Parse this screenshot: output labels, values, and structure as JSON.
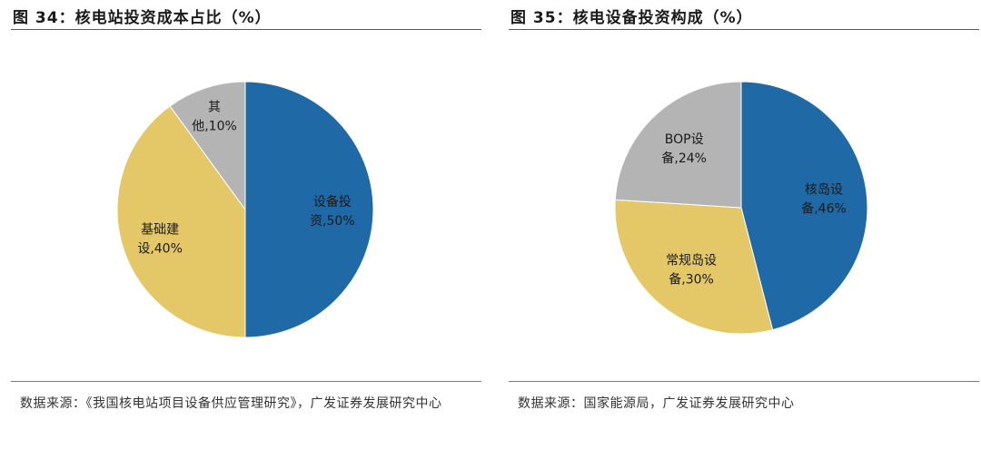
{
  "chart_data": [
    {
      "type": "pie",
      "title": "图 34：核电站投资成本占比（%）",
      "categories": [
        "设备投资",
        "基础建设",
        "其他"
      ],
      "values": [
        50,
        40,
        10
      ],
      "labels": [
        {
          "line1": "设备投",
          "line2": "资,50%"
        },
        {
          "line1": "基础建",
          "line2": "设,40%"
        },
        {
          "line1": "其",
          "line2": "他,10%"
        }
      ],
      "colors": [
        "#1f6aa6",
        "#e4c766",
        "#b4b4b4"
      ],
      "source": "数据来源：《我国核电站项目设备供应管理研究》，广发证券发展研究中心"
    },
    {
      "type": "pie",
      "title": "图 35：核电设备投资构成（%）",
      "categories": [
        "核岛设备",
        "常规岛设备",
        "BOP设备"
      ],
      "values": [
        46,
        30,
        24
      ],
      "labels": [
        {
          "line1": "核岛设",
          "line2": "备,46%"
        },
        {
          "line1": "常规岛设",
          "line2": "备,30%"
        },
        {
          "line1": "BOP设",
          "line2": "备,24%"
        }
      ],
      "colors": [
        "#1f6aa6",
        "#e4c766",
        "#b4b4b4"
      ],
      "source": "数据来源：国家能源局，广发证券发展研究中心"
    }
  ]
}
